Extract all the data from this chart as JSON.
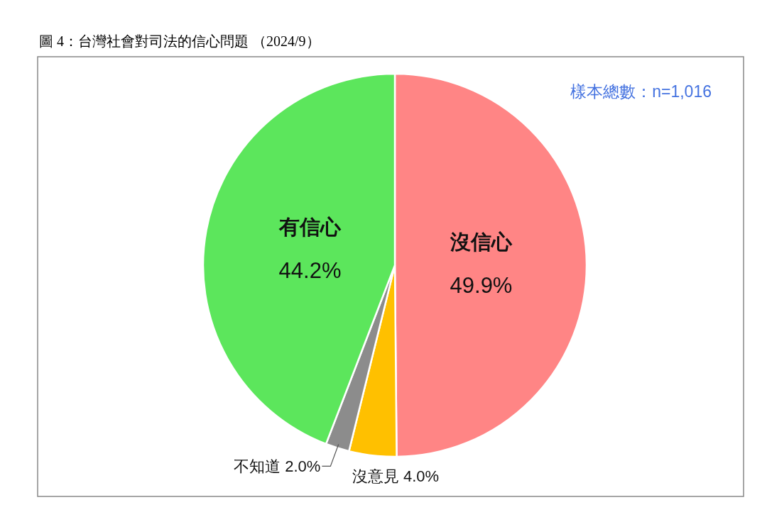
{
  "chart_data": {
    "type": "pie",
    "title": "圖 4：台灣社會對司法的信心問題 （2024/9）",
    "categories": [
      "沒信心",
      "沒意見",
      "不知道",
      "有信心"
    ],
    "values": [
      49.9,
      4.0,
      2.0,
      44.2
    ],
    "colors": [
      "#ff8585",
      "#ffc000",
      "#8c8c8c",
      "#5ce65c"
    ],
    "value_labels": [
      "49.9%",
      "4.0%",
      "2.0%",
      "44.2%"
    ],
    "annotations": [
      "樣本總數：n=1,016"
    ]
  }
}
